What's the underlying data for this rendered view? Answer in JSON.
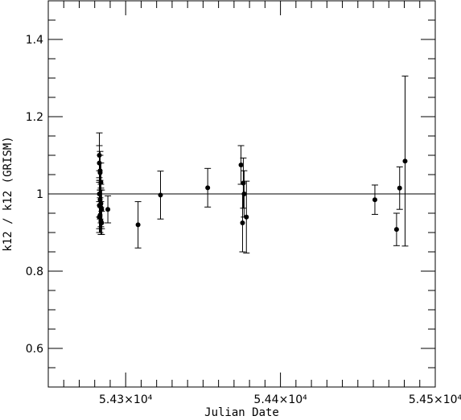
{
  "chart_data": {
    "type": "scatter",
    "title": "",
    "xlabel": "Julian Date",
    "ylabel": "k12 / k12 (GRISM)",
    "xlim": [
      54250,
      54500
    ],
    "ylim": [
      0.5,
      1.5
    ],
    "x_ticks": [
      {
        "value": 54300,
        "label": "5.43×10⁴"
      },
      {
        "value": 54400,
        "label": "5.44×10⁴"
      },
      {
        "value": 54500,
        "label": "5.45×10⁴"
      }
    ],
    "y_ticks": [
      {
        "value": 0.6,
        "label": "0.6"
      },
      {
        "value": 0.8,
        "label": "0.8"
      },
      {
        "value": 1.0,
        "label": "1"
      },
      {
        "value": 1.2,
        "label": "1.2"
      },
      {
        "value": 1.4,
        "label": "1.4"
      }
    ],
    "reference_line": 1.0,
    "grid": false,
    "series": [
      {
        "points": [
          {
            "x": 54283.0,
            "y": 1.1,
            "err": 0.058
          },
          {
            "x": 54283.0,
            "y": 1.08,
            "err": 0.045
          },
          {
            "x": 54283.5,
            "y": 1.06,
            "err": 0.05
          },
          {
            "x": 54283.5,
            "y": 1.055,
            "err": 0.045
          },
          {
            "x": 54284.0,
            "y": 1.03,
            "err": 0.05
          },
          {
            "x": 54283.0,
            "y": 1.0,
            "err": 0.06
          },
          {
            "x": 54283.5,
            "y": 0.985,
            "err": 0.05
          },
          {
            "x": 54284.0,
            "y": 0.975,
            "err": 0.05
          },
          {
            "x": 54283.0,
            "y": 0.97,
            "err": 0.06
          },
          {
            "x": 54284.0,
            "y": 0.965,
            "err": 0.05
          },
          {
            "x": 54283.5,
            "y": 0.945,
            "err": 0.045
          },
          {
            "x": 54284.5,
            "y": 0.96,
            "err": 0.05
          },
          {
            "x": 54283.0,
            "y": 0.94,
            "err": 0.04
          },
          {
            "x": 54284.0,
            "y": 0.93,
            "err": 0.035
          },
          {
            "x": 54284.5,
            "y": 0.925,
            "err": 0.03
          },
          {
            "x": 54288.5,
            "y": 0.96,
            "err": 0.035
          },
          {
            "x": 54308.0,
            "y": 0.92,
            "err": 0.06
          },
          {
            "x": 54322.5,
            "y": 0.997,
            "err": 0.062
          },
          {
            "x": 54353.0,
            "y": 1.016,
            "err": 0.05
          },
          {
            "x": 54374.5,
            "y": 1.075,
            "err": 0.05
          },
          {
            "x": 54375.5,
            "y": 0.925,
            "err": 0.075
          },
          {
            "x": 54376.0,
            "y": 1.028,
            "err": 0.065
          },
          {
            "x": 54376.5,
            "y": 1.0,
            "err": 0.06
          },
          {
            "x": 54378.0,
            "y": 0.94,
            "err": 0.093
          },
          {
            "x": 54461.0,
            "y": 0.985,
            "err": 0.038
          },
          {
            "x": 54475.0,
            "y": 0.908,
            "err": 0.042
          },
          {
            "x": 54477.0,
            "y": 1.015,
            "err": 0.055
          },
          {
            "x": 54480.5,
            "y": 1.085,
            "err": 0.22
          }
        ]
      }
    ]
  }
}
